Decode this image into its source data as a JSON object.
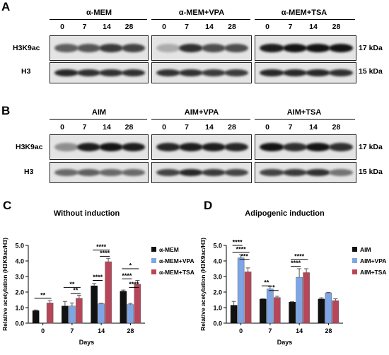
{
  "panels": {
    "A": {
      "letter": "A",
      "groups": [
        "α-MEM",
        "α-MEM+VPA",
        "α-MEM+TSA"
      ],
      "lanes": [
        "0",
        "7",
        "14",
        "28"
      ],
      "rows": [
        {
          "label": "H3K9ac",
          "kda": "17 kDa"
        },
        {
          "label": "H3",
          "kda": "15 kDa"
        }
      ],
      "band_intensity": {
        "H3K9ac": [
          [
            0.55,
            0.6,
            0.75,
            0.7
          ],
          [
            0.15,
            0.8,
            0.65,
            0.65
          ],
          [
            0.9,
            0.95,
            0.95,
            0.95
          ]
        ],
        "H3": [
          [
            0.85,
            0.8,
            0.8,
            0.8
          ],
          [
            0.8,
            0.8,
            0.75,
            0.75
          ],
          [
            0.85,
            0.85,
            0.85,
            0.8
          ]
        ]
      }
    },
    "B": {
      "letter": "B",
      "groups": [
        "AIM",
        "AIM+VPA",
        "AIM+TSA"
      ],
      "lanes": [
        "0",
        "7",
        "14",
        "28"
      ],
      "rows": [
        {
          "label": "H3K9ac",
          "kda": "17 kDa"
        },
        {
          "label": "H3",
          "kda": "15 kDa"
        }
      ],
      "band_intensity": {
        "H3K9ac": [
          [
            0.3,
            0.9,
            0.95,
            0.9
          ],
          [
            0.85,
            0.9,
            0.9,
            0.85
          ],
          [
            0.95,
            0.8,
            0.95,
            0.8
          ]
        ],
        "H3": [
          [
            0.5,
            0.55,
            0.5,
            0.5
          ],
          [
            0.7,
            0.85,
            0.75,
            0.7
          ],
          [
            0.7,
            0.75,
            0.8,
            0.45
          ]
        ]
      }
    }
  },
  "chart_data": [
    {
      "type": "bar",
      "panel_letter": "C",
      "title": "Without induction",
      "xlabel": "Days",
      "ylabel": "Relative acetylation (H3K9ac/H3)",
      "categories": [
        "0",
        "7",
        "14",
        "28"
      ],
      "ylim": [
        0,
        5
      ],
      "yticks": [
        "0.0",
        "1.0",
        "2.0",
        "3.0",
        "4.0",
        "5.0"
      ],
      "series": [
        {
          "name": "α-MEM",
          "color": "#111111",
          "values": [
            0.8,
            1.1,
            2.4,
            2.05
          ],
          "errors": [
            0.05,
            0.3,
            0.15,
            0.08
          ]
        },
        {
          "name": "α-MEM+VPA",
          "color": "#7ea6e6",
          "values": [
            null,
            1.1,
            1.25,
            1.2
          ],
          "errors": [
            0,
            0.2,
            0.03,
            0.07
          ]
        },
        {
          "name": "α-MEM+TSA",
          "color": "#b8465a",
          "values": [
            1.3,
            1.6,
            3.95,
            2.5
          ],
          "errors": [
            0.15,
            0.2,
            0.22,
            0.25
          ]
        }
      ],
      "significance": [
        "**",
        "**",
        "**",
        "****",
        "****",
        "****",
        "*",
        "****",
        "****"
      ]
    },
    {
      "type": "bar",
      "panel_letter": "D",
      "title": "Adipogenic induction",
      "xlabel": "Days",
      "ylabel": "Relative acetylation (H3K9ac/H3)",
      "categories": [
        "0",
        "7",
        "14",
        "28"
      ],
      "ylim": [
        0,
        5
      ],
      "yticks": [
        "0.0",
        "1.0",
        "2.0",
        "3.0",
        "4.0",
        "5.0"
      ],
      "series": [
        {
          "name": "AIM",
          "color": "#111111",
          "values": [
            1.15,
            1.55,
            1.35,
            1.55
          ],
          "errors": [
            0.25,
            0.02,
            0.03,
            0.08
          ]
        },
        {
          "name": "AIM+VPA",
          "color": "#7ea6e6",
          "values": [
            4.2,
            2.2,
            2.95,
            1.95
          ],
          "errors": [
            0.2,
            0.15,
            0.55,
            0.03
          ]
        },
        {
          "name": "AIM+TSA",
          "color": "#b8465a",
          "values": [
            3.3,
            1.65,
            3.25,
            1.45
          ],
          "errors": [
            0.25,
            0.08,
            0.25,
            0.12
          ]
        }
      ],
      "significance": [
        "****",
        "****",
        "***",
        "**",
        "*",
        "****",
        "****"
      ]
    }
  ]
}
